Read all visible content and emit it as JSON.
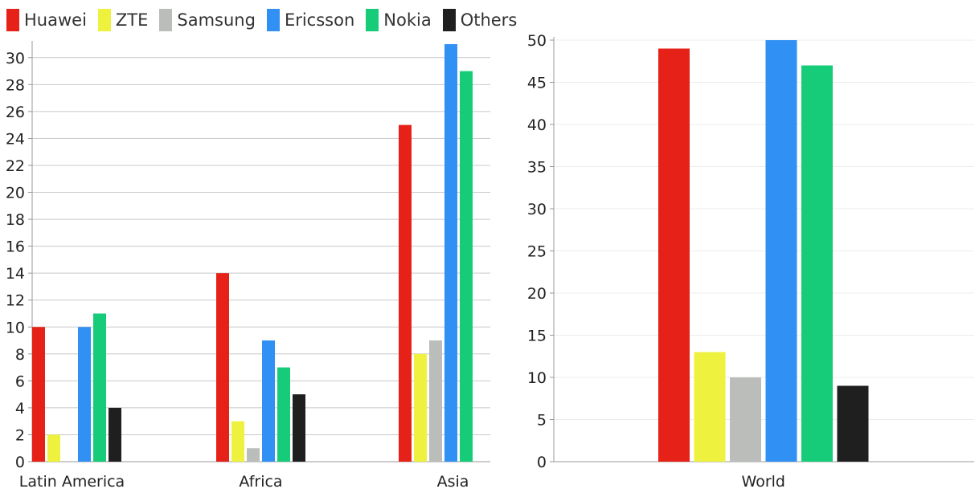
{
  "legend": {
    "position": "top-left",
    "items": [
      {
        "name": "Huawei",
        "color": "#e62117"
      },
      {
        "name": "ZTE",
        "color": "#eef13d"
      },
      {
        "name": "Samsung",
        "color": "#bbbdbb"
      },
      {
        "name": "Ericsson",
        "color": "#3090f3"
      },
      {
        "name": "Nokia",
        "color": "#16cc79"
      },
      {
        "name": "Others",
        "color": "#1f1f1f"
      }
    ]
  },
  "chart_data": [
    {
      "type": "bar",
      "categories": [
        "Latin America",
        "Africa",
        "Asia"
      ],
      "series": [
        {
          "name": "Huawei",
          "values": [
            10,
            14,
            25
          ]
        },
        {
          "name": "ZTE",
          "values": [
            2,
            3,
            8
          ]
        },
        {
          "name": "Samsung",
          "values": [
            0,
            1,
            9
          ]
        },
        {
          "name": "Ericsson",
          "values": [
            10,
            9,
            31
          ]
        },
        {
          "name": "Nokia",
          "values": [
            11,
            7,
            29
          ]
        },
        {
          "name": "Others",
          "values": [
            4,
            5,
            0
          ]
        }
      ],
      "ylim": [
        0,
        31
      ],
      "yticks": [
        0,
        2,
        4,
        6,
        8,
        10,
        12,
        14,
        16,
        18,
        20,
        22,
        24,
        26,
        28,
        30
      ],
      "grid": true
    },
    {
      "type": "bar",
      "categories": [
        "World"
      ],
      "series": [
        {
          "name": "Huawei",
          "values": [
            49
          ]
        },
        {
          "name": "ZTE",
          "values": [
            13
          ]
        },
        {
          "name": "Samsung",
          "values": [
            10
          ]
        },
        {
          "name": "Ericsson",
          "values": [
            50
          ]
        },
        {
          "name": "Nokia",
          "values": [
            47
          ]
        },
        {
          "name": "Others",
          "values": [
            9
          ]
        }
      ],
      "ylim": [
        0,
        50
      ],
      "yticks": [
        0,
        5,
        10,
        15,
        20,
        25,
        30,
        35,
        40,
        45,
        50
      ],
      "grid": true
    }
  ]
}
